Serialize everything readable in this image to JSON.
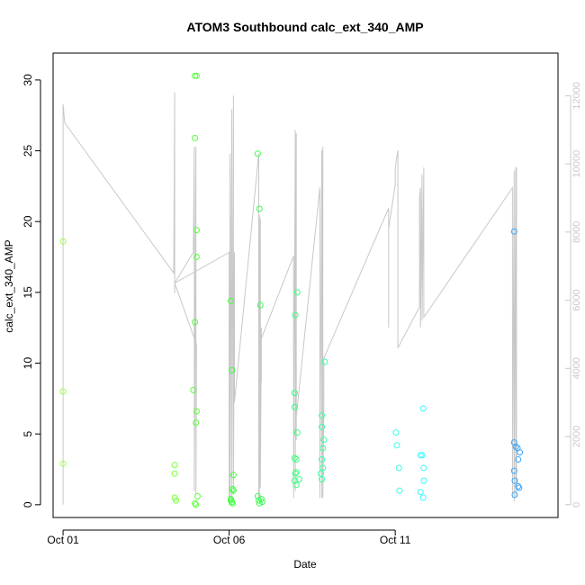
{
  "chart_data": {
    "type": "scatter",
    "title": "ATOM3 Southbound calc_ext_340_AMP",
    "xlabel": "Date",
    "ylabel": "calc_ext_340_AMP",
    "x_ticks": [
      {
        "label": "Oct 01",
        "day": 1.0
      },
      {
        "label": "Oct 06",
        "day": 6.0
      },
      {
        "label": "Oct 11",
        "day": 11.0
      }
    ],
    "xlim": [
      0.7,
      15.9
    ],
    "ylim": [
      -0.9,
      31.9
    ],
    "y_ticks": [
      0,
      5,
      10,
      15,
      20,
      25,
      30
    ],
    "y2_ticks": [
      0,
      2000,
      4000,
      6000,
      8000,
      10000,
      12000
    ],
    "y2lim": [
      -375,
      13250
    ],
    "colors": {
      "line": "#c8c8c8",
      "right_axis": "#c8c8c8",
      "frame": "#000000"
    },
    "points": [
      {
        "x": 1.0,
        "y": 18.6,
        "c": "#9cff3a"
      },
      {
        "x": 1.0,
        "y": 8.0,
        "c": "#9cff3a"
      },
      {
        "x": 1.0,
        "y": 2.9,
        "c": "#9cff3a"
      },
      {
        "x": 4.36,
        "y": 2.8,
        "c": "#77ff3a"
      },
      {
        "x": 4.36,
        "y": 2.2,
        "c": "#77ff3a"
      },
      {
        "x": 4.36,
        "y": 0.5,
        "c": "#77ff3a"
      },
      {
        "x": 4.4,
        "y": 0.3,
        "c": "#77ff3a"
      },
      {
        "x": 4.97,
        "y": 30.3,
        "c": "#59ff3a"
      },
      {
        "x": 5.02,
        "y": 30.3,
        "c": "#59ff3a"
      },
      {
        "x": 4.97,
        "y": 25.9,
        "c": "#59ff3a"
      },
      {
        "x": 5.02,
        "y": 19.4,
        "c": "#59ff3a"
      },
      {
        "x": 5.02,
        "y": 17.5,
        "c": "#59ff3a"
      },
      {
        "x": 4.97,
        "y": 12.9,
        "c": "#59ff3a"
      },
      {
        "x": 4.92,
        "y": 8.1,
        "c": "#59ff3a"
      },
      {
        "x": 5.02,
        "y": 6.6,
        "c": "#59ff3a"
      },
      {
        "x": 5.0,
        "y": 5.8,
        "c": "#59ff3a"
      },
      {
        "x": 5.05,
        "y": 0.6,
        "c": "#59ff3a"
      },
      {
        "x": 4.97,
        "y": 0.1,
        "c": "#59ff3a"
      },
      {
        "x": 5.0,
        "y": 0.0,
        "c": "#59ff3a"
      },
      {
        "x": 6.05,
        "y": 14.4,
        "c": "#3dff3d"
      },
      {
        "x": 6.08,
        "y": 9.5,
        "c": "#3dff3d"
      },
      {
        "x": 6.13,
        "y": 2.1,
        "c": "#3dff3d"
      },
      {
        "x": 6.1,
        "y": 1.1,
        "c": "#3dff3d"
      },
      {
        "x": 6.13,
        "y": 1.0,
        "c": "#3dff3d"
      },
      {
        "x": 6.05,
        "y": 0.4,
        "c": "#3dff3d"
      },
      {
        "x": 6.08,
        "y": 0.2,
        "c": "#3dff3d"
      },
      {
        "x": 6.1,
        "y": 0.1,
        "c": "#3dff3d"
      },
      {
        "x": 6.05,
        "y": 0.3,
        "c": "#3dff3d"
      },
      {
        "x": 6.86,
        "y": 24.8,
        "c": "#3aff52"
      },
      {
        "x": 6.91,
        "y": 20.9,
        "c": "#3aff52"
      },
      {
        "x": 6.94,
        "y": 14.1,
        "c": "#3aff52"
      },
      {
        "x": 6.86,
        "y": 0.6,
        "c": "#3aff52"
      },
      {
        "x": 6.89,
        "y": 0.3,
        "c": "#3aff52"
      },
      {
        "x": 6.91,
        "y": 0.1,
        "c": "#3aff52"
      },
      {
        "x": 6.97,
        "y": 0.4,
        "c": "#3aff52"
      },
      {
        "x": 7.0,
        "y": 0.2,
        "c": "#3aff52"
      },
      {
        "x": 8.05,
        "y": 15.0,
        "c": "#3aff7c"
      },
      {
        "x": 7.99,
        "y": 13.4,
        "c": "#3aff7c"
      },
      {
        "x": 7.97,
        "y": 7.9,
        "c": "#3aff7c"
      },
      {
        "x": 7.97,
        "y": 6.9,
        "c": "#3aff7c"
      },
      {
        "x": 8.05,
        "y": 5.1,
        "c": "#3aff7c"
      },
      {
        "x": 7.97,
        "y": 3.3,
        "c": "#3aff7c"
      },
      {
        "x": 8.02,
        "y": 3.2,
        "c": "#3aff7c"
      },
      {
        "x": 8.02,
        "y": 2.3,
        "c": "#3aff7c"
      },
      {
        "x": 7.99,
        "y": 2.2,
        "c": "#3aff7c"
      },
      {
        "x": 7.97,
        "y": 1.7,
        "c": "#3aff7c"
      },
      {
        "x": 8.02,
        "y": 1.4,
        "c": "#3aff7c"
      },
      {
        "x": 8.11,
        "y": 1.8,
        "c": "#3aff7c"
      },
      {
        "x": 8.88,
        "y": 10.1,
        "c": "#3affa2"
      },
      {
        "x": 8.79,
        "y": 6.3,
        "c": "#3affa2"
      },
      {
        "x": 8.79,
        "y": 5.5,
        "c": "#3affa2"
      },
      {
        "x": 8.85,
        "y": 4.6,
        "c": "#3affa2"
      },
      {
        "x": 8.82,
        "y": 4.0,
        "c": "#3affa2"
      },
      {
        "x": 8.79,
        "y": 3.2,
        "c": "#3affa2"
      },
      {
        "x": 8.82,
        "y": 2.6,
        "c": "#3affa2"
      },
      {
        "x": 8.76,
        "y": 2.2,
        "c": "#3affa2"
      },
      {
        "x": 8.79,
        "y": 1.8,
        "c": "#3affa2"
      },
      {
        "x": 11.02,
        "y": 5.1,
        "c": "#3affe0"
      },
      {
        "x": 11.05,
        "y": 4.2,
        "c": "#3affe0"
      },
      {
        "x": 11.11,
        "y": 2.6,
        "c": "#3affe0"
      },
      {
        "x": 11.13,
        "y": 1.0,
        "c": "#3affe0"
      },
      {
        "x": 11.84,
        "y": 6.8,
        "c": "#3af8ff"
      },
      {
        "x": 11.76,
        "y": 3.5,
        "c": "#3af8ff"
      },
      {
        "x": 11.81,
        "y": 3.5,
        "c": "#3af8ff"
      },
      {
        "x": 11.86,
        "y": 2.6,
        "c": "#3af8ff"
      },
      {
        "x": 11.86,
        "y": 1.7,
        "c": "#3af8ff"
      },
      {
        "x": 11.76,
        "y": 0.9,
        "c": "#3af8ff"
      },
      {
        "x": 11.84,
        "y": 0.5,
        "c": "#3af8ff"
      },
      {
        "x": 14.58,
        "y": 19.3,
        "c": "#3aa8ff"
      },
      {
        "x": 14.58,
        "y": 4.4,
        "c": "#3aa8ff"
      },
      {
        "x": 14.63,
        "y": 4.1,
        "c": "#3aa8ff"
      },
      {
        "x": 14.68,
        "y": 4.0,
        "c": "#3aa8ff"
      },
      {
        "x": 14.75,
        "y": 3.7,
        "c": "#3aa8ff"
      },
      {
        "x": 14.7,
        "y": 3.2,
        "c": "#3aa8ff"
      },
      {
        "x": 14.58,
        "y": 2.4,
        "c": "#3aa8ff"
      },
      {
        "x": 14.6,
        "y": 1.7,
        "c": "#3aa8ff"
      },
      {
        "x": 14.7,
        "y": 1.3,
        "c": "#3aa8ff"
      },
      {
        "x": 14.73,
        "y": 1.2,
        "c": "#3aa8ff"
      },
      {
        "x": 14.6,
        "y": 0.7,
        "c": "#3aa8ff"
      }
    ],
    "line_y2": [
      [
        1.0,
        0
      ],
      [
        1.0,
        11750
      ],
      [
        1.05,
        11200
      ],
      [
        4.33,
        6800
      ],
      [
        4.36,
        12100
      ],
      [
        4.36,
        6200
      ],
      [
        4.36,
        6500
      ],
      [
        4.92,
        7400
      ],
      [
        4.95,
        10500
      ],
      [
        4.95,
        400
      ],
      [
        5.0,
        10500
      ],
      [
        5.0,
        300
      ],
      [
        5.02,
        4700
      ],
      [
        4.36,
        6500
      ],
      [
        6.0,
        7400
      ],
      [
        6.0,
        0
      ],
      [
        6.03,
        10300
      ],
      [
        6.03,
        200
      ],
      [
        6.08,
        11600
      ],
      [
        6.08,
        100
      ],
      [
        6.13,
        12000
      ],
      [
        6.13,
        300
      ],
      [
        6.16,
        7400
      ],
      [
        6.16,
        3000
      ],
      [
        6.89,
        10300
      ],
      [
        6.89,
        100
      ],
      [
        6.91,
        8500
      ],
      [
        6.91,
        200
      ],
      [
        6.94,
        8400
      ],
      [
        6.94,
        500
      ],
      [
        6.97,
        5200
      ],
      [
        6.97,
        3600
      ],
      [
        6.94,
        4800
      ],
      [
        7.94,
        7300
      ],
      [
        7.94,
        200
      ],
      [
        7.99,
        11000
      ],
      [
        7.99,
        400
      ],
      [
        8.02,
        10900
      ],
      [
        8.02,
        1900
      ],
      [
        7.97,
        2100
      ],
      [
        8.73,
        9300
      ],
      [
        8.73,
        200
      ],
      [
        8.79,
        10400
      ],
      [
        8.79,
        200
      ],
      [
        8.82,
        10500
      ],
      [
        8.82,
        200
      ],
      [
        8.85,
        2900
      ],
      [
        8.85,
        4300
      ],
      [
        10.8,
        8700
      ],
      [
        10.8,
        5200
      ],
      [
        10.8,
        8100
      ],
      [
        11.0,
        9400
      ],
      [
        11.0,
        9900
      ],
      [
        11.08,
        10400
      ],
      [
        11.08,
        4600
      ],
      [
        11.73,
        5800
      ],
      [
        11.73,
        9000
      ],
      [
        11.76,
        9300
      ],
      [
        11.76,
        5200
      ],
      [
        11.81,
        9700
      ],
      [
        11.81,
        5400
      ],
      [
        11.86,
        9900
      ],
      [
        11.86,
        5500
      ],
      [
        14.53,
        9300
      ],
      [
        14.53,
        200
      ],
      [
        14.58,
        9800
      ],
      [
        14.58,
        100
      ],
      [
        14.63,
        9900
      ],
      [
        14.63,
        200
      ],
      [
        14.65,
        9900
      ],
      [
        14.65,
        400
      ]
    ]
  }
}
